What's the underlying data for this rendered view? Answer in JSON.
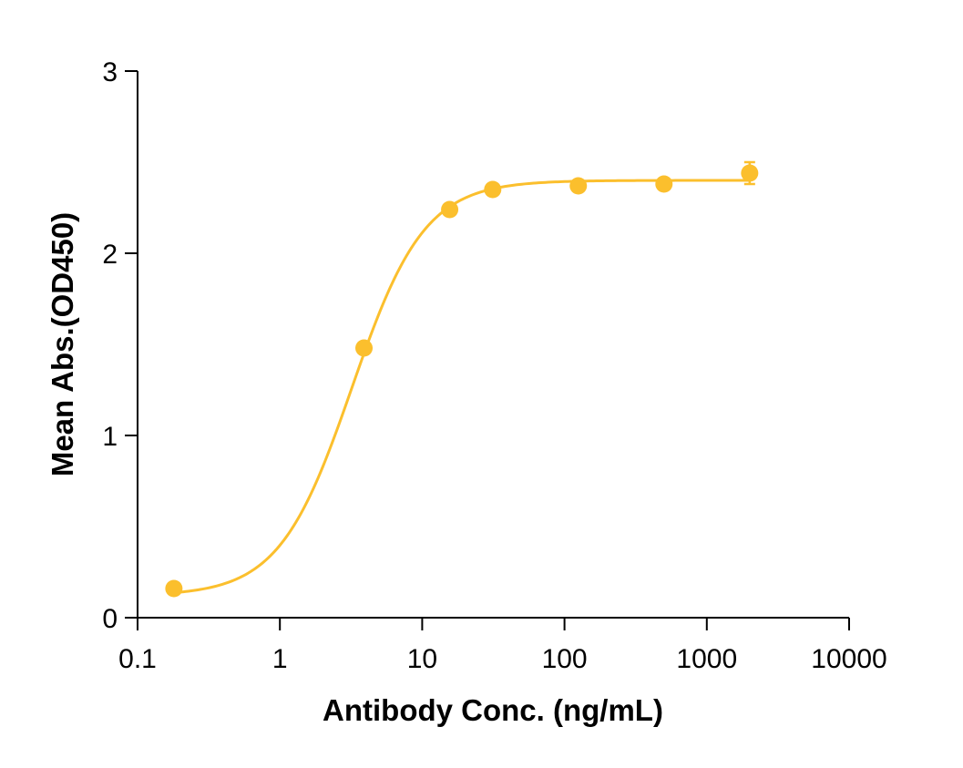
{
  "chart_data": {
    "type": "scatter",
    "title": "",
    "xlabel": "Antibody Conc. (ng/mL)",
    "ylabel": "Mean Abs.(OD450)",
    "x_scale": "log",
    "xlim": [
      0.1,
      10000
    ],
    "ylim": [
      0,
      3
    ],
    "x_ticks": [
      0.1,
      1,
      10,
      100,
      1000,
      10000
    ],
    "x_tick_labels": [
      "0.1",
      "1",
      "10",
      "100",
      "1000",
      "10000"
    ],
    "y_ticks": [
      0,
      1,
      2,
      3
    ],
    "y_tick_labels": [
      "0",
      "1",
      "2",
      "3"
    ],
    "grid": false,
    "color": "#FBBF2D",
    "series": [
      {
        "points": [
          {
            "x": 0.18,
            "y": 0.16,
            "err": 0.01
          },
          {
            "x": 3.9,
            "y": 1.48,
            "err": 0.02
          },
          {
            "x": 15.6,
            "y": 2.24,
            "err": 0.02
          },
          {
            "x": 31.3,
            "y": 2.35,
            "err": 0.02
          },
          {
            "x": 125,
            "y": 2.37,
            "err": 0.02
          },
          {
            "x": 500,
            "y": 2.38,
            "err": 0.02
          },
          {
            "x": 2000,
            "y": 2.44,
            "err": 0.06
          }
        ],
        "fit": {
          "model": "4PL",
          "bottom": 0.12,
          "top": 2.4,
          "ec50": 3.2,
          "hill": 1.7
        }
      }
    ]
  }
}
